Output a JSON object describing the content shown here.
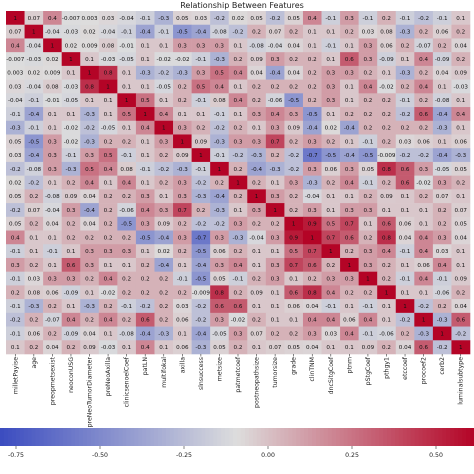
{
  "chart_data": {
    "type": "heatmap",
    "title": "Relationship Between Features",
    "x_labels": [
      "milletPayise",
      "age",
      "preopmetsexist",
      "neoconUSG",
      "preNeoTumorDiameter",
      "preNeoAxilla",
      "clinicsenoelCoef",
      "patLN",
      "multifokal",
      "axilla",
      "slnsuccess",
      "metsize",
      "patmetcoef",
      "postneopathsize",
      "tumorsize",
      "grade",
      "clinTNM",
      "dncSitgCoef",
      "ptnm",
      "pStgCoef",
      "pthgy1",
      "etccoef",
      "procoef2",
      "cerb2",
      "luminalsubtype"
    ],
    "values": [
      [
        1,
        0.07,
        0.4,
        -0.007,
        0.003,
        0.03,
        -0.04,
        -0.1,
        -0.3,
        0.05,
        0.03,
        -0.2,
        0.02,
        0.05,
        -0.2,
        0.05,
        0.4,
        -0.1,
        0.3,
        -0.1,
        0.2,
        -0.1,
        -0.2,
        -0.1,
        0.1
      ],
      [
        0.07,
        1,
        -0.04,
        -0.03,
        0.02,
        -0.04,
        -0.1,
        -0.4,
        -0.1,
        -0.5,
        -0.4,
        -0.08,
        -0.2,
        0.2,
        0.07,
        0.2,
        0.1,
        0.1,
        0.2,
        0.03,
        0.08,
        -0.3,
        0.2,
        0.06,
        0.2
      ],
      [
        0.4,
        -0.04,
        1,
        0.02,
        0.009,
        0.08,
        -0.01,
        0.1,
        0.1,
        0.3,
        0.3,
        0.3,
        0.1,
        -0.08,
        -0.04,
        0.04,
        0.1,
        -0.1,
        0.1,
        0.3,
        0.06,
        0.2,
        -0.07,
        0.2,
        0.04
      ],
      [
        -0.007,
        -0.03,
        0.02,
        1,
        0.1,
        -0.03,
        -0.05,
        0.1,
        -0.02,
        -0.02,
        -0.1,
        -0.3,
        0.2,
        0.09,
        0.3,
        0.2,
        0.2,
        0.1,
        0.6,
        0.3,
        -0.09,
        0.1,
        0.4,
        -0.09,
        0.2
      ],
      [
        0.003,
        0.02,
        0.009,
        0.1,
        1,
        0.8,
        0.1,
        -0.3,
        -0.2,
        -0.3,
        0.3,
        0.5,
        0.4,
        0.04,
        -0.4,
        0.04,
        0.2,
        0.3,
        0.3,
        0.2,
        0.1,
        -0.3,
        0.2,
        0.04,
        0.09
      ],
      [
        0.03,
        -0.04,
        0.08,
        -0.03,
        0.8,
        1,
        0.1,
        0.1,
        -0.05,
        0.2,
        0.5,
        0.4,
        0.1,
        0.2,
        0.2,
        0.2,
        0.2,
        0.3,
        0.1,
        0.4,
        -0.02,
        0.2,
        0.4,
        0.1,
        -0.03
      ],
      [
        -0.04,
        -0.1,
        -0.01,
        -0.05,
        0.1,
        0.1,
        1,
        0.5,
        0.1,
        0.2,
        -0.1,
        0.08,
        0.4,
        0.2,
        -0.06,
        -0.5,
        0.2,
        0.3,
        0.1,
        0.2,
        0.2,
        -0.1,
        0.2,
        -0.08,
        0.1
      ],
      [
        -0.1,
        -0.4,
        0.1,
        0.1,
        -0.3,
        0.1,
        0.5,
        1,
        0.4,
        0.1,
        0.1,
        -0.1,
        0.1,
        0.3,
        0.4,
        0.3,
        -0.5,
        0.1,
        0.2,
        0.2,
        0.2,
        -0.2,
        0.6,
        -0.4,
        0.4
      ],
      [
        -0.3,
        -0.1,
        0.1,
        -0.02,
        -0.2,
        -0.05,
        0.1,
        0.4,
        1,
        0.3,
        0.2,
        -0.2,
        0.2,
        0.1,
        0.3,
        0.09,
        -0.4,
        0.02,
        -0.4,
        0.2,
        0.2,
        0.2,
        0.2,
        -0.3,
        0.1
      ],
      [
        0.05,
        -0.5,
        0.3,
        -0.02,
        -0.3,
        0.2,
        0.2,
        0.1,
        0.3,
        1,
        0.09,
        -0.3,
        0.3,
        0.3,
        0.7,
        0.2,
        0.3,
        0.2,
        0.1,
        -0.1,
        0.2,
        0.03,
        0.06,
        0.1,
        0.06
      ],
      [
        0.03,
        -0.4,
        0.3,
        -0.1,
        0.3,
        0.5,
        -0.1,
        0.1,
        0.2,
        0.09,
        1,
        -0.1,
        -0.2,
        -0.3,
        0.2,
        -0.2,
        -0.7,
        -0.5,
        -0.4,
        -0.5,
        -0.009,
        -0.2,
        -0.2,
        -0.4,
        -0.3
      ],
      [
        -0.2,
        -0.08,
        0.3,
        -0.3,
        0.5,
        0.4,
        0.08,
        -0.1,
        -0.2,
        -0.3,
        -0.1,
        1,
        0.2,
        -0.4,
        -0.3,
        -0.2,
        0.3,
        0.06,
        0.3,
        0.05,
        0.8,
        0.6,
        0.3,
        -0.05,
        0.05
      ],
      [
        0.02,
        -0.2,
        0.1,
        0.2,
        0.4,
        0.1,
        0.4,
        0.1,
        0.2,
        0.3,
        -0.2,
        0.2,
        1,
        0.2,
        0.1,
        0.3,
        -0.3,
        0.2,
        0.4,
        -0.1,
        0.2,
        0.6,
        -0.02,
        0.3,
        0.2
      ],
      [
        0.05,
        0.2,
        -0.08,
        0.09,
        0.04,
        0.2,
        0.2,
        0.3,
        0.1,
        0.3,
        -0.3,
        -0.4,
        0.2,
        1,
        0.3,
        0.2,
        -0.04,
        0.1,
        0.1,
        0.2,
        0.09,
        0.1,
        0.2,
        0.07,
        0.1
      ],
      [
        -0.2,
        0.07,
        -0.04,
        0.3,
        -0.4,
        0.2,
        -0.06,
        0.4,
        0.3,
        0.7,
        0.2,
        -0.3,
        0.1,
        0.3,
        1,
        0.2,
        0.3,
        0.1,
        0.3,
        0.3,
        0.1,
        0.1,
        0.1,
        0.2,
        0.07
      ],
      [
        0.05,
        0.2,
        0.04,
        0.2,
        0.04,
        0.2,
        -0.5,
        0.3,
        0.09,
        0.2,
        -0.2,
        -0.2,
        0.3,
        0.2,
        0.2,
        1,
        0.9,
        0.5,
        0.7,
        0.1,
        0.6,
        0.06,
        0.1,
        0.2,
        0.05
      ],
      [
        0.4,
        0.1,
        0.1,
        0.2,
        0.2,
        0.2,
        0.2,
        -0.5,
        -0.4,
        0.3,
        -0.7,
        0.3,
        -0.3,
        -0.04,
        0.3,
        0.9,
        1,
        0.7,
        0.6,
        0.2,
        0.8,
        0.04,
        0.4,
        0.3,
        0.04
      ],
      [
        -0.1,
        0.1,
        -0.1,
        0.1,
        0.3,
        0.3,
        0.3,
        0.1,
        0.02,
        0.2,
        -0.5,
        0.06,
        0.2,
        0.1,
        0.1,
        0.5,
        0.7,
        1,
        0.2,
        0.3,
        0.4,
        -0.1,
        0.4,
        0.03,
        0.1
      ],
      [
        0.3,
        0.2,
        0.1,
        0.6,
        0.3,
        0.1,
        0.1,
        0.2,
        -0.4,
        0.1,
        -0.4,
        0.3,
        0.4,
        0.1,
        0.3,
        0.7,
        0.6,
        0.2,
        1,
        0.3,
        0.2,
        0.1,
        0.06,
        0.4,
        0.1
      ],
      [
        -0.1,
        0.03,
        0.3,
        0.3,
        0.2,
        0.4,
        0.2,
        0.2,
        0.2,
        -0.1,
        -0.5,
        0.05,
        -0.1,
        0.2,
        0.3,
        0.1,
        0.2,
        0.3,
        0.3,
        1,
        0.2,
        -0.1,
        0.4,
        -0.1,
        0.09
      ],
      [
        0.2,
        0.08,
        0.06,
        -0.09,
        0.1,
        -0.02,
        0.2,
        0.2,
        0.2,
        0.2,
        -0.009,
        0.8,
        0.2,
        0.09,
        0.1,
        0.6,
        0.8,
        0.4,
        0.2,
        0.2,
        1,
        0.1,
        0.1,
        -0.06,
        0.2
      ],
      [
        -0.1,
        -0.3,
        0.2,
        0.1,
        -0.3,
        0.2,
        -0.1,
        -0.2,
        0.2,
        0.03,
        -0.2,
        0.6,
        0.6,
        0.1,
        0.1,
        0.06,
        0.04,
        -0.1,
        0.1,
        -0.1,
        0.1,
        1,
        -0.2,
        0.2,
        0.04
      ],
      [
        -0.2,
        0.2,
        -0.07,
        0.4,
        0.2,
        0.4,
        0.2,
        0.6,
        0.2,
        0.06,
        -0.2,
        0.3,
        -0.02,
        0.2,
        0.1,
        0.1,
        0.4,
        0.4,
        0.06,
        0.4,
        0.1,
        -0.2,
        1,
        -0.3,
        0.6
      ],
      [
        -0.1,
        0.06,
        0.2,
        -0.09,
        0.04,
        0.1,
        -0.08,
        -0.4,
        -0.3,
        0.1,
        -0.4,
        -0.05,
        0.3,
        0.07,
        0.2,
        0.2,
        0.3,
        0.03,
        0.4,
        -0.1,
        -0.06,
        0.2,
        -0.3,
        1,
        -0.2
      ],
      [
        0.1,
        0.2,
        0.04,
        0.2,
        0.09,
        -0.03,
        0.1,
        0.4,
        0.1,
        0.06,
        -0.3,
        0.05,
        0.2,
        0.1,
        0.07,
        0.05,
        0.04,
        0.1,
        0.1,
        0.09,
        0.2,
        0.04,
        0.6,
        -0.2,
        1
      ]
    ],
    "color_range": [
      -1,
      1
    ],
    "colorbar_ticks": [
      -0.75,
      -0.5,
      -0.25,
      0.0,
      0.25,
      0.5
    ],
    "colorbar_tick_labels": [
      "-0.75",
      "-0.50",
      "-0.25",
      "0.00",
      "0.25",
      "0.50"
    ],
    "colormap": {
      "low": "#3b4cc0",
      "mid": "#dddddd",
      "high": "#b40426"
    },
    "grid": false,
    "colorbar_placement": "bottom"
  }
}
